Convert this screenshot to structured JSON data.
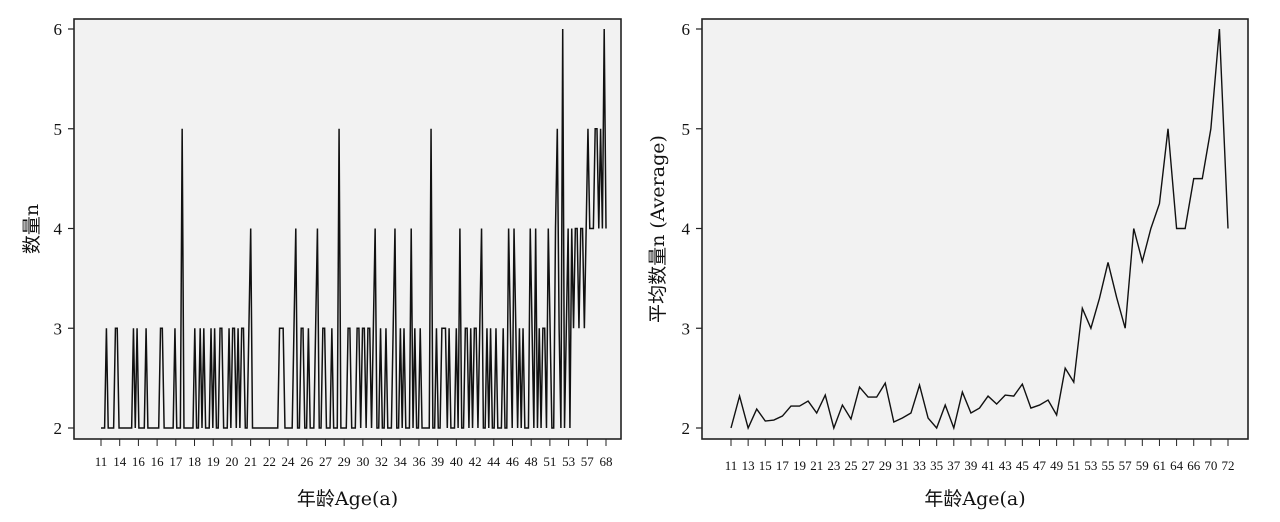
{
  "chart_data": [
    {
      "type": "line",
      "xlabel": "年龄Age(a)",
      "ylabel": "数量n",
      "ylim": [
        2,
        6
      ],
      "yticks": [
        2,
        3,
        4,
        5,
        6
      ],
      "xticks": [
        "11",
        "14",
        "16",
        "16",
        "17",
        "18",
        "19",
        "20",
        "21",
        "22",
        "24",
        "26",
        "27",
        "29",
        "30",
        "32",
        "34",
        "36",
        "39",
        "40",
        "42",
        "44",
        "46",
        "48",
        "51",
        "53",
        "57",
        "68"
      ],
      "grid": false,
      "colors": {
        "line": "#111111",
        "plot_bg": "#f2f2f2"
      },
      "series": [
        {
          "values": [
            2,
            2,
            2,
            3,
            2,
            2,
            2,
            2,
            3,
            3,
            2,
            2,
            2,
            2,
            2,
            2,
            2,
            2,
            3,
            2,
            3,
            2,
            2,
            2,
            2,
            3,
            2,
            2,
            2,
            2,
            2,
            2,
            2,
            3,
            3,
            2,
            2,
            2,
            2,
            2,
            2,
            3,
            2,
            2,
            2,
            5,
            2,
            2,
            2,
            2,
            2,
            2,
            3,
            2,
            2,
            3,
            2,
            3,
            2,
            2,
            2,
            3,
            2,
            3,
            2,
            2,
            3,
            3,
            2,
            2,
            2,
            3,
            2,
            3,
            3,
            2,
            3,
            2,
            3,
            3,
            2,
            2,
            3,
            4,
            2,
            2,
            2,
            2,
            2,
            2,
            2,
            2,
            2,
            2,
            2,
            2,
            2,
            2,
            2,
            3,
            3,
            3,
            2,
            2,
            2,
            2,
            2,
            3,
            4,
            2,
            2,
            3,
            3,
            2,
            2,
            3,
            2,
            2,
            2,
            3,
            4,
            2,
            2,
            3,
            3,
            2,
            2,
            2,
            3,
            2,
            2,
            2,
            5,
            2,
            2,
            2,
            2,
            3,
            3,
            2,
            2,
            2,
            3,
            3,
            2,
            3,
            3,
            2,
            3,
            3,
            2,
            3,
            4,
            2,
            2,
            3,
            2,
            2,
            3,
            2,
            2,
            2,
            3,
            4,
            2,
            2,
            3,
            2,
            3,
            2,
            2,
            2,
            4,
            2,
            3,
            2,
            2,
            3,
            2,
            2,
            2,
            2,
            2,
            5,
            2,
            2,
            3,
            2,
            2,
            3,
            3,
            3,
            2,
            3,
            2,
            2,
            2,
            3,
            2,
            4,
            2,
            2,
            3,
            3,
            2,
            3,
            2,
            3,
            3,
            2,
            3,
            4,
            2,
            2,
            3,
            2,
            3,
            2,
            2,
            3,
            2,
            2,
            2,
            3,
            2,
            2,
            4,
            3,
            2,
            4,
            3,
            2,
            3,
            2,
            3,
            2,
            2,
            2,
            4,
            3,
            2,
            4,
            2,
            3,
            2,
            3,
            3,
            2,
            4,
            3,
            2,
            2,
            4,
            5,
            3,
            2,
            6,
            2,
            3,
            4,
            2,
            4,
            3,
            4,
            4,
            3,
            4,
            4,
            3,
            4,
            5,
            4,
            4,
            4,
            5,
            5,
            4,
            5,
            4,
            6,
            4
          ]
        }
      ]
    },
    {
      "type": "line",
      "xlabel": "年龄Age(a)",
      "ylabel": "平均数量n (Average)",
      "ylim": [
        2,
        6
      ],
      "yticks": [
        2,
        3,
        4,
        5,
        6
      ],
      "xticks": [
        "11",
        "13",
        "15",
        "17",
        "19",
        "21",
        "23",
        "25",
        "27",
        "29",
        "31",
        "33",
        "35",
        "37",
        "39",
        "41",
        "43",
        "45",
        "47",
        "49",
        "51",
        "53",
        "55",
        "57",
        "59",
        "61",
        "64",
        "66",
        "70",
        "72"
      ],
      "grid": false,
      "colors": {
        "line": "#111111",
        "plot_bg": "#f2f2f2"
      },
      "series": [
        {
          "values": [
            2.0,
            2.32,
            2.0,
            2.19,
            2.07,
            2.08,
            2.12,
            2.22,
            2.22,
            2.27,
            2.15,
            2.33,
            2.0,
            2.23,
            2.09,
            2.41,
            2.31,
            2.31,
            2.45,
            2.06,
            2.1,
            2.15,
            2.43,
            2.1,
            2.0,
            2.23,
            2.0,
            2.36,
            2.15,
            2.2,
            2.32,
            2.24,
            2.33,
            2.32,
            2.44,
            2.2,
            2.23,
            2.28,
            2.13,
            2.6,
            2.46,
            3.2,
            3.0,
            3.3,
            3.66,
            3.31,
            3.0,
            4.0,
            3.67,
            4.0,
            4.25,
            5.0,
            4.0,
            4.0,
            4.5,
            4.5,
            5.0,
            6.0,
            4.0
          ]
        }
      ]
    }
  ]
}
